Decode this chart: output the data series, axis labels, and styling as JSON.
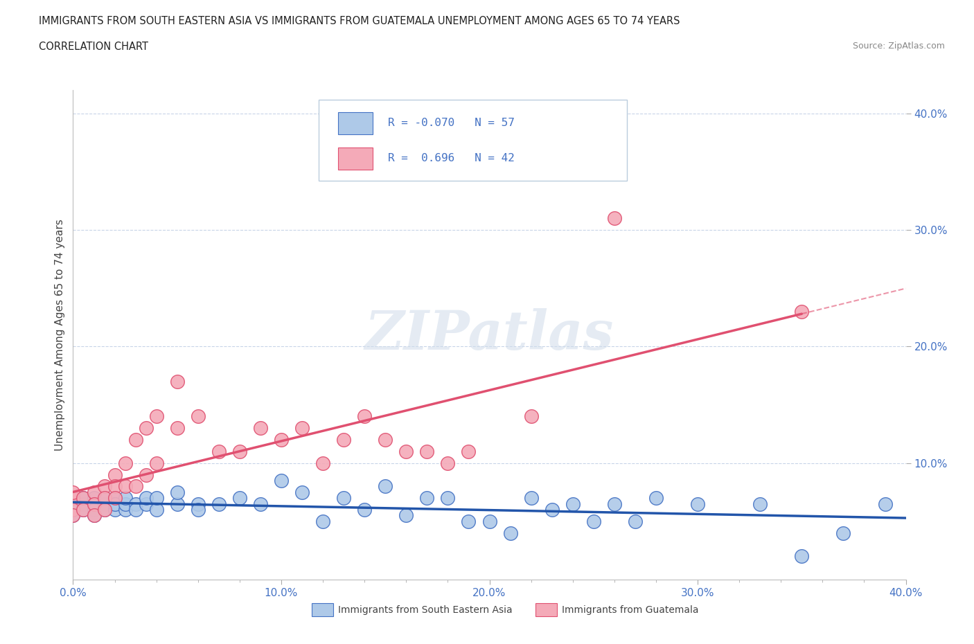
{
  "title_line1": "IMMIGRANTS FROM SOUTH EASTERN ASIA VS IMMIGRANTS FROM GUATEMALA UNEMPLOYMENT AMONG AGES 65 TO 74 YEARS",
  "title_line2": "CORRELATION CHART",
  "source_text": "Source: ZipAtlas.com",
  "ylabel": "Unemployment Among Ages 65 to 74 years",
  "xlim": [
    0.0,
    0.4
  ],
  "ylim": [
    0.0,
    0.42
  ],
  "xtick_labels": [
    "0.0%",
    "",
    "",
    "",
    "",
    "10.0%",
    "",
    "",
    "",
    "",
    "20.0%",
    "",
    "",
    "",
    "",
    "30.0%",
    "",
    "",
    "",
    "",
    "40.0%"
  ],
  "xtick_vals": [
    0.0,
    0.02,
    0.04,
    0.06,
    0.08,
    0.1,
    0.12,
    0.14,
    0.16,
    0.18,
    0.2,
    0.22,
    0.24,
    0.26,
    0.28,
    0.3,
    0.32,
    0.34,
    0.36,
    0.38,
    0.4
  ],
  "ytick_labels": [
    "10.0%",
    "20.0%",
    "30.0%",
    "40.0%"
  ],
  "ytick_vals": [
    0.1,
    0.2,
    0.3,
    0.4
  ],
  "watermark": "ZIPatlas",
  "color_asia": "#aec9e8",
  "color_asia_edge": "#4472c4",
  "color_guatemala": "#f4aab8",
  "color_guatemala_edge": "#e05070",
  "color_trendline_asia": "#2255aa",
  "color_trendline_guatemala": "#e05070",
  "color_text_blue": "#4472c4",
  "background_color": "#ffffff",
  "grid_color": "#c8d4e8",
  "asia_x": [
    0.0,
    0.0,
    0.0,
    0.0,
    0.005,
    0.005,
    0.005,
    0.01,
    0.01,
    0.01,
    0.01,
    0.015,
    0.015,
    0.015,
    0.02,
    0.02,
    0.02,
    0.025,
    0.025,
    0.025,
    0.03,
    0.03,
    0.035,
    0.035,
    0.04,
    0.04,
    0.05,
    0.05,
    0.06,
    0.06,
    0.07,
    0.08,
    0.09,
    0.1,
    0.11,
    0.12,
    0.13,
    0.14,
    0.15,
    0.16,
    0.17,
    0.18,
    0.19,
    0.2,
    0.21,
    0.22,
    0.23,
    0.24,
    0.25,
    0.26,
    0.27,
    0.28,
    0.3,
    0.33,
    0.35,
    0.37,
    0.39
  ],
  "asia_y": [
    0.065,
    0.07,
    0.06,
    0.055,
    0.065,
    0.07,
    0.06,
    0.065,
    0.07,
    0.06,
    0.055,
    0.065,
    0.07,
    0.06,
    0.07,
    0.06,
    0.065,
    0.06,
    0.065,
    0.07,
    0.065,
    0.06,
    0.065,
    0.07,
    0.06,
    0.07,
    0.065,
    0.075,
    0.065,
    0.06,
    0.065,
    0.07,
    0.065,
    0.085,
    0.075,
    0.05,
    0.07,
    0.06,
    0.08,
    0.055,
    0.07,
    0.07,
    0.05,
    0.05,
    0.04,
    0.07,
    0.06,
    0.065,
    0.05,
    0.065,
    0.05,
    0.07,
    0.065,
    0.065,
    0.02,
    0.04,
    0.065
  ],
  "guatemala_x": [
    0.0,
    0.0,
    0.0,
    0.0,
    0.005,
    0.005,
    0.01,
    0.01,
    0.01,
    0.015,
    0.015,
    0.015,
    0.02,
    0.02,
    0.02,
    0.025,
    0.025,
    0.03,
    0.03,
    0.035,
    0.035,
    0.04,
    0.04,
    0.05,
    0.05,
    0.06,
    0.07,
    0.08,
    0.09,
    0.1,
    0.11,
    0.12,
    0.13,
    0.14,
    0.15,
    0.16,
    0.17,
    0.18,
    0.19,
    0.22,
    0.26,
    0.35
  ],
  "guatemala_y": [
    0.07,
    0.06,
    0.075,
    0.055,
    0.07,
    0.06,
    0.075,
    0.065,
    0.055,
    0.08,
    0.07,
    0.06,
    0.09,
    0.08,
    0.07,
    0.1,
    0.08,
    0.12,
    0.08,
    0.09,
    0.13,
    0.1,
    0.14,
    0.17,
    0.13,
    0.14,
    0.11,
    0.11,
    0.13,
    0.12,
    0.13,
    0.1,
    0.12,
    0.14,
    0.12,
    0.11,
    0.11,
    0.1,
    0.11,
    0.14,
    0.31,
    0.23
  ],
  "leg_r1": "R = -0.070",
  "leg_n1": "N = 57",
  "leg_r2": "R =  0.696",
  "leg_n2": "N = 42",
  "leg_label1": "Immigrants from South Eastern Asia",
  "leg_label2": "Immigrants from Guatemala"
}
